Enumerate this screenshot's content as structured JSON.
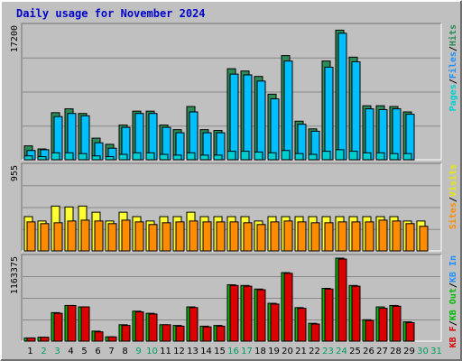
{
  "chart_data": {
    "type": "bar",
    "title": "Daily usage for November 2024",
    "days": [
      "1",
      "2",
      "3",
      "4",
      "5",
      "6",
      "7",
      "8",
      "9",
      "10",
      "11",
      "12",
      "13",
      "14",
      "15",
      "16",
      "17",
      "18",
      "19",
      "20",
      "21",
      "22",
      "23",
      "24",
      "25",
      "26",
      "27",
      "28",
      "29",
      "30",
      "31"
    ],
    "weekend_days": [
      "2",
      "3",
      "9",
      "10",
      "16",
      "17",
      "23",
      "24",
      "30",
      "31"
    ],
    "colors": {
      "background": "#c0c0c0",
      "hits": "#2e8b57",
      "files": "#00bfff",
      "pages": "#00ced1",
      "visits": "#ffff33",
      "sites": "#ff8c00",
      "kb_in": "#00bb00",
      "kb_out": "#dd0000",
      "title": "#0000cc",
      "weekday_label": "#000000",
      "weekend_label": "#00a060"
    },
    "panels": [
      {
        "name": "hits-files-pages",
        "max_label": "17200",
        "ymax": 17200,
        "legend": [
          {
            "text": "Pages",
            "color": "#00ced1"
          },
          {
            "text": "/",
            "color": "#000000"
          },
          {
            "text": "Files",
            "color": "#1e90ff"
          },
          {
            "text": "/",
            "color": "#000000"
          },
          {
            "text": "Hits",
            "color": "#2e8b57"
          }
        ],
        "series": [
          {
            "name": "Hits",
            "color": "#2e8b57",
            "values": [
              1800,
              1400,
              6100,
              6600,
              6000,
              2800,
              2000,
              4500,
              6300,
              6300,
              4500,
              3900,
              6900,
              3900,
              3800,
              11800,
              11500,
              10800,
              8500,
              13500,
              5000,
              4000,
              12800,
              16800,
              13300,
              7000,
              7000,
              6900,
              6200,
              0,
              0
            ]
          },
          {
            "name": "Files",
            "color": "#00bfff",
            "values": [
              1200,
              1300,
              5600,
              6000,
              5700,
              2200,
              1500,
              4200,
              6000,
              6000,
              4200,
              3500,
              6200,
              3500,
              3500,
              11100,
              11000,
              10200,
              7900,
              12800,
              4600,
              3700,
              12000,
              16400,
              12700,
              6600,
              6500,
              6600,
              5900,
              0,
              0
            ]
          },
          {
            "name": "Pages",
            "color": "#00ced1",
            "values": [
              500,
              400,
              900,
              900,
              800,
              500,
              400,
              700,
              900,
              900,
              700,
              600,
              900,
              600,
              600,
              1100,
              1100,
              1000,
              900,
              1200,
              800,
              700,
              1100,
              1300,
              1100,
              900,
              900,
              800,
              800,
              0,
              0
            ]
          }
        ]
      },
      {
        "name": "visits-sites",
        "max_label": "955",
        "ymax": 955,
        "legend": [
          {
            "text": "Sites",
            "color": "#ff8c00"
          },
          {
            "text": "/",
            "color": "#000000"
          },
          {
            "text": "Visits",
            "color": "#e8e800"
          }
        ],
        "series": [
          {
            "name": "Visits",
            "color": "#ffff33",
            "values": [
              390,
              340,
              510,
              500,
              510,
              440,
              340,
              440,
              390,
              340,
              390,
              390,
              440,
              390,
              390,
              390,
              390,
              340,
              390,
              390,
              390,
              390,
              390,
              390,
              390,
              390,
              390,
              390,
              340,
              340,
              0
            ]
          },
          {
            "name": "Sites",
            "color": "#ff8c00",
            "values": [
              330,
              310,
              320,
              340,
              350,
              340,
              310,
              350,
              330,
              300,
              320,
              330,
              340,
              330,
              330,
              330,
              320,
              300,
              330,
              340,
              330,
              320,
              320,
              330,
              330,
              330,
              350,
              340,
              310,
              280,
              0
            ]
          }
        ]
      },
      {
        "name": "kb-in-out",
        "max_label": "1163375",
        "ymax": 1163375,
        "legend": [
          {
            "text": "KB F",
            "color": "#dd0000"
          },
          {
            "text": "/",
            "color": "#000000"
          },
          {
            "text": "KB Out",
            "color": "#00bb00"
          },
          {
            "text": "/",
            "color": "#000000"
          },
          {
            "text": "KB In",
            "color": "#1e90ff"
          }
        ],
        "series": [
          {
            "name": "KB In",
            "color": "#00bb00",
            "values": [
              45000,
              55000,
              400000,
              500000,
              480000,
              140000,
              60000,
              230000,
              420000,
              390000,
              230000,
              220000,
              480000,
              210000,
              220000,
              790000,
              780000,
              730000,
              530000,
              960000,
              470000,
              250000,
              740000,
              1163375,
              780000,
              300000,
              480000,
              500000,
              270000,
              0,
              0
            ]
          },
          {
            "name": "KB Out",
            "color": "#dd0000",
            "values": [
              45000,
              55000,
              390000,
              500000,
              480000,
              130000,
              60000,
              220000,
              410000,
              380000,
              230000,
              210000,
              470000,
              200000,
              210000,
              780000,
              770000,
              720000,
              520000,
              950000,
              460000,
              240000,
              730000,
              1150000,
              770000,
              290000,
              460000,
              490000,
              260000,
              0,
              0
            ]
          }
        ]
      }
    ]
  }
}
